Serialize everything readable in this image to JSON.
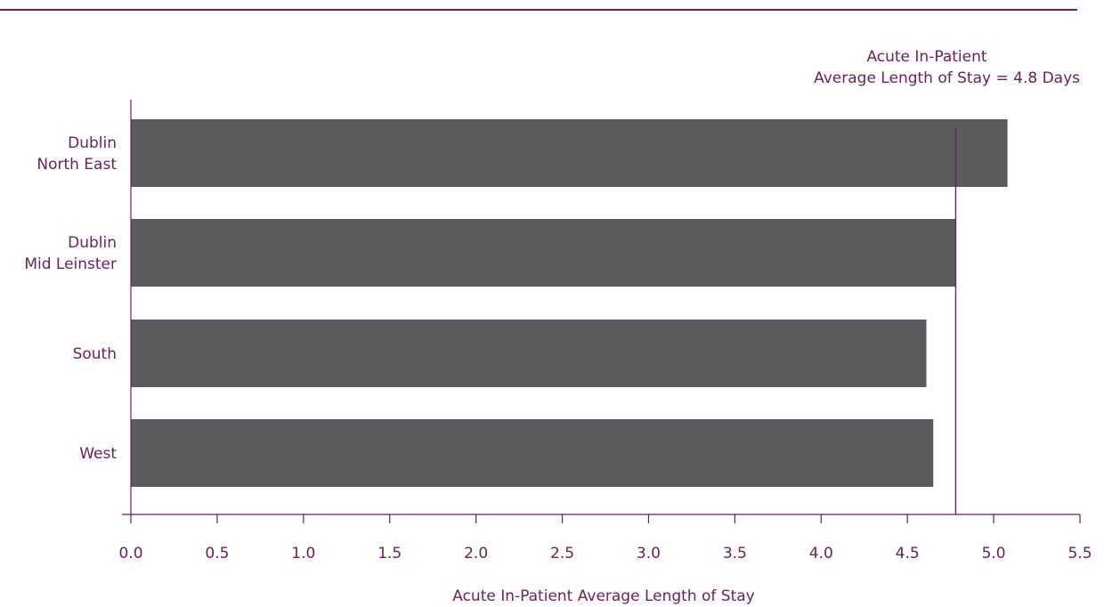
{
  "chart_data": {
    "type": "bar",
    "orientation": "horizontal",
    "categories": [
      [
        "Dublin",
        "North East"
      ],
      [
        "Dublin",
        "Mid Leinster"
      ],
      [
        "South"
      ],
      [
        "West"
      ]
    ],
    "values": [
      5.08,
      4.78,
      4.61,
      4.65
    ],
    "xlabel": "Acute In-Patient Average Length of Stay",
    "ylabel": "",
    "xlim": [
      0,
      5.5
    ],
    "xticks": [
      "0.0",
      "0.5",
      "1.0",
      "1.5",
      "2.0",
      "2.5",
      "3.0",
      "3.5",
      "4.0",
      "4.5",
      "5.0",
      "5.5"
    ],
    "reference_line": {
      "value": 4.78,
      "label_lines": [
        "Acute In-Patient",
        "Average Length of Stay = 4.8 Days"
      ]
    },
    "grid": false,
    "legend": "none"
  },
  "colors": {
    "bar": "#5b5b5d",
    "axis": "#6b1f5b",
    "text": "#6b1f5b",
    "top_rule": "#6b1f5b"
  }
}
